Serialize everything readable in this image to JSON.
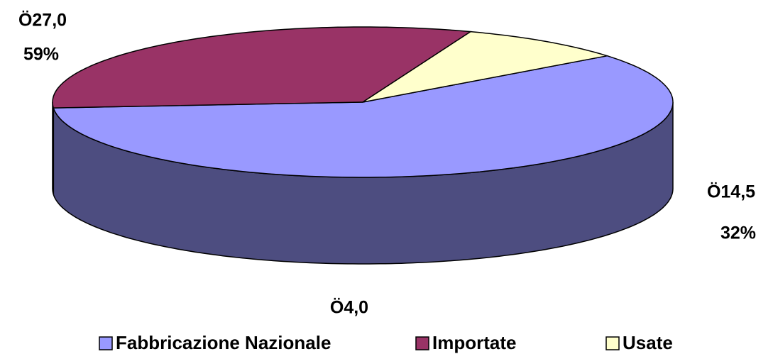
{
  "chart_data": {
    "type": "pie",
    "three_d": true,
    "categories": [
      "Fabbricazione Nazionale",
      "Importate",
      "Usate"
    ],
    "values": [
      27.0,
      14.5,
      4.0
    ],
    "value_labels": [
      "Ö27,0",
      "Ö14,5",
      "Ö4,0"
    ],
    "percent_labels": [
      "59%",
      "32%",
      null
    ],
    "colors": [
      "#9999ff",
      "#993366",
      "#ffffcc"
    ],
    "side_colors": [
      "#4d4d80",
      "#4d1a33",
      "#808066"
    ],
    "legend": "bottom"
  }
}
